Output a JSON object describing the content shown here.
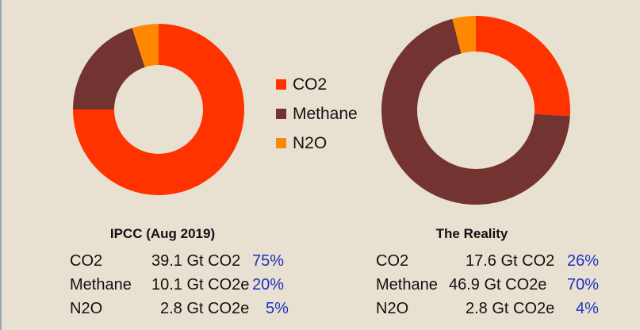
{
  "colors": {
    "background": "#e8e1d2",
    "co2": "#ff3300",
    "methane": "#733331",
    "n2o": "#ff8800",
    "percent_text": "#1f2fc0"
  },
  "legend": [
    {
      "label": "CO2",
      "color": "#ff3300"
    },
    {
      "label": "Methane",
      "color": "#733331"
    },
    {
      "label": "N2O",
      "color": "#ff8800"
    }
  ],
  "chart_data": [
    {
      "type": "pie",
      "variant": "donut",
      "title": "IPCC (Aug 2019)",
      "categories": [
        "CO2",
        "Methane",
        "N2O"
      ],
      "values": [
        75,
        20,
        5
      ],
      "table": [
        {
          "gas": "CO2",
          "amount": "39.1 Gt CO2",
          "percent": "75%"
        },
        {
          "gas": "Methane",
          "amount": "10.1 Gt CO2e",
          "percent": "20%"
        },
        {
          "gas": "N2O",
          "amount": "2.8 Gt CO2e",
          "percent": "5%"
        }
      ]
    },
    {
      "type": "pie",
      "variant": "donut",
      "title": "The Reality",
      "categories": [
        "CO2",
        "Methane",
        "N2O"
      ],
      "values": [
        26,
        70,
        4
      ],
      "table": [
        {
          "gas": "CO2",
          "amount": "17.6 Gt CO2",
          "percent": "26%"
        },
        {
          "gas": "Methane",
          "amount": "46.9 Gt CO2e",
          "percent": "70%"
        },
        {
          "gas": "N2O",
          "amount": "2.8 Gt CO2e",
          "percent": "4%"
        }
      ]
    }
  ]
}
